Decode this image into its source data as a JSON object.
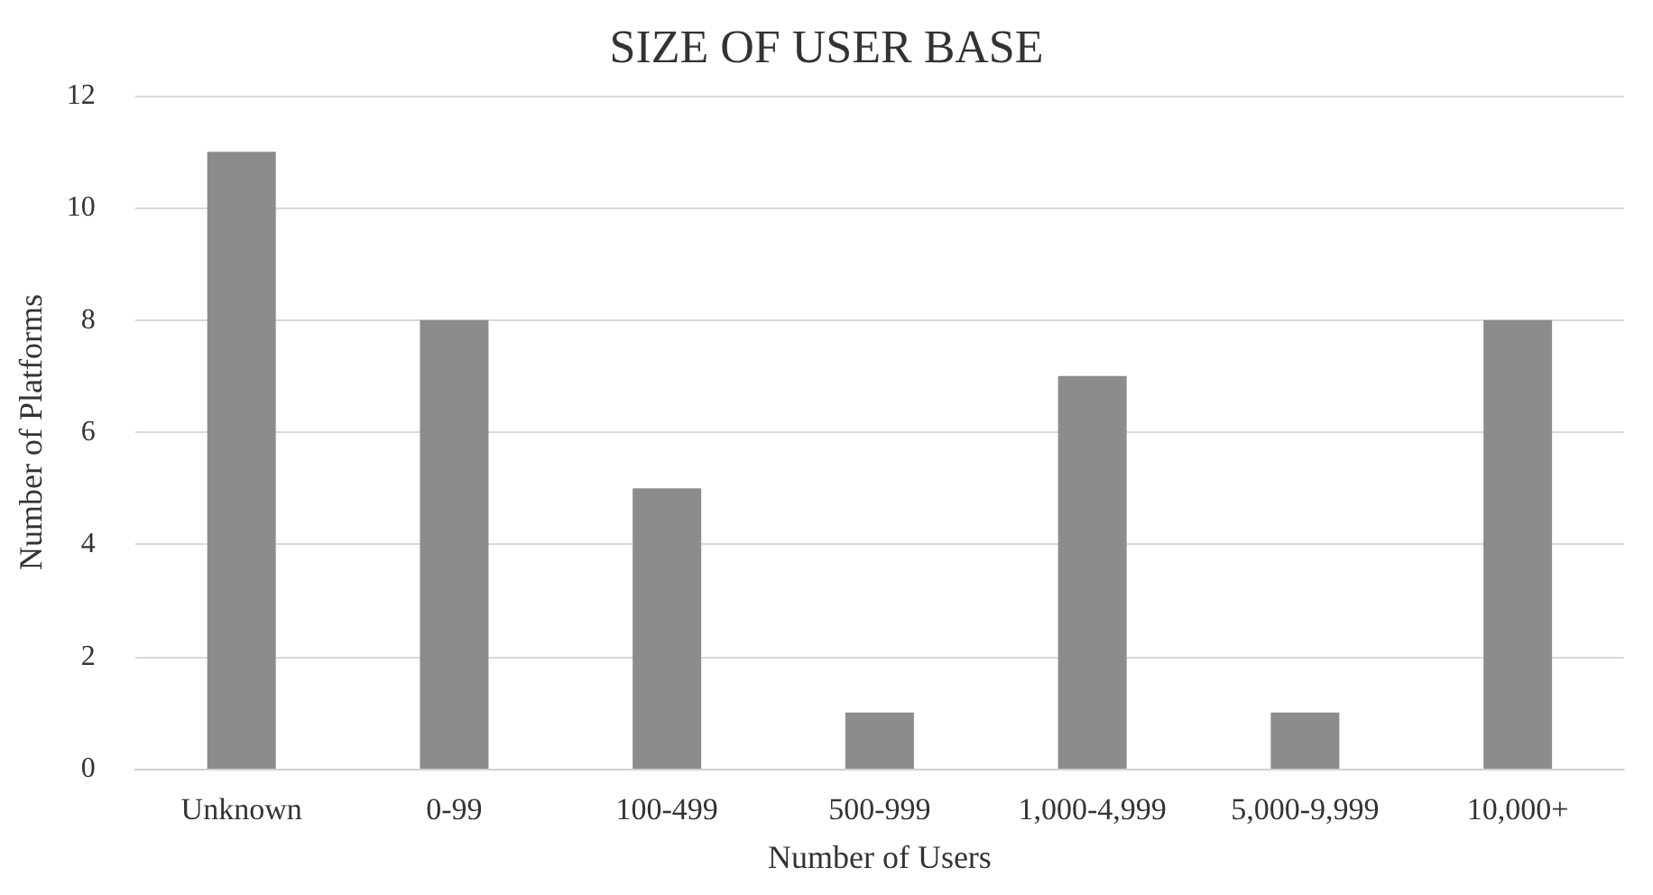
{
  "chart_data": {
    "type": "bar",
    "title": "SIZE OF USER BASE",
    "xlabel": "Number of Users",
    "ylabel": "Number of Platforms",
    "categories": [
      "Unknown",
      "0-99",
      "100-499",
      "500-999",
      "1,000-4,999",
      "5,000-9,999",
      "10,000+"
    ],
    "values": [
      11,
      8,
      5,
      1,
      7,
      1,
      8
    ],
    "color": "#8c8c8c",
    "ylim": [
      0,
      12
    ],
    "yticks": [
      0,
      2,
      4,
      6,
      8,
      10,
      12
    ],
    "grid": "y"
  }
}
